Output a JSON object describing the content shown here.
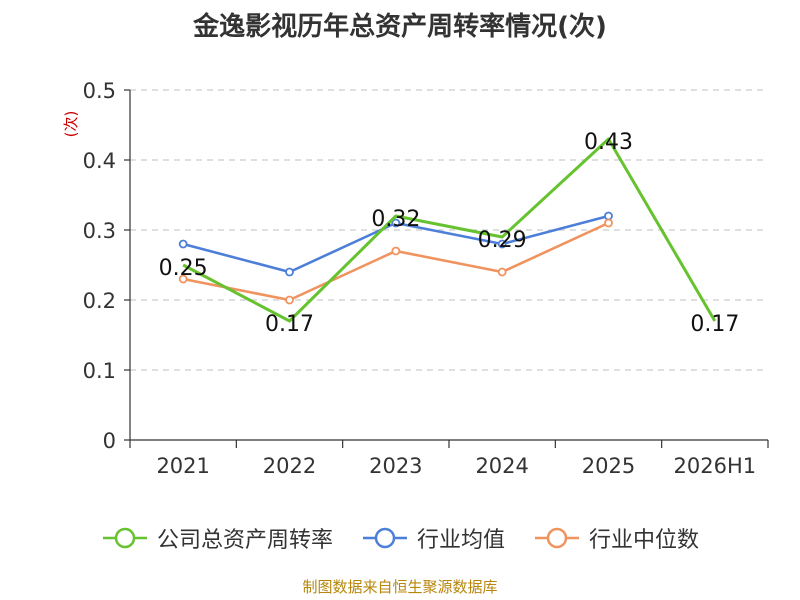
{
  "chart_data": {
    "type": "line",
    "title": "金逸影视历年总资产周转率情况(次)",
    "ylabel": "(次)",
    "xlabel": "",
    "categories": [
      "2021",
      "2022",
      "2023",
      "2024",
      "2025",
      "2026H1"
    ],
    "ylim": [
      0,
      0.5
    ],
    "yticks": [
      "0",
      "0.1",
      "0.2",
      "0.3",
      "0.4",
      "0.5"
    ],
    "grid": true,
    "legend_position": "bottom",
    "series": [
      {
        "name": "公司总资产周转率",
        "color": "#66c22e",
        "values": [
          0.25,
          0.17,
          0.32,
          0.29,
          0.43,
          0.17
        ],
        "labels": [
          "0.25",
          "0.17",
          "0.32",
          "0.29",
          "0.43",
          "0.17"
        ]
      },
      {
        "name": "行业均值",
        "color": "#4d7fd9",
        "values": [
          0.28,
          0.24,
          0.31,
          0.28,
          0.32,
          null
        ]
      },
      {
        "name": "行业中位数",
        "color": "#f0935f",
        "values": [
          0.23,
          0.2,
          0.27,
          0.24,
          0.31,
          null
        ]
      }
    ],
    "source": "制图数据来自恒生聚源数据库"
  }
}
